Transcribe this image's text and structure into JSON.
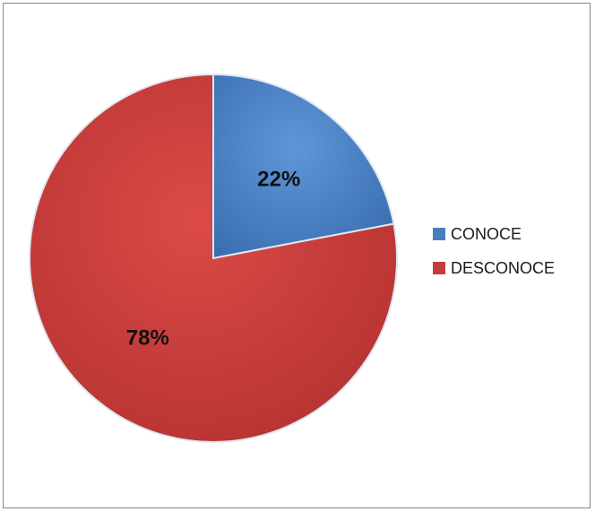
{
  "chart_data": {
    "type": "pie",
    "categories": [
      "CONOCE",
      "DESCONOCE"
    ],
    "values": [
      22,
      78
    ],
    "data_labels": [
      "22%",
      "78%"
    ],
    "colors": [
      "#4a7ebb",
      "#c63b3b"
    ],
    "legend_position": "right",
    "grid": false
  }
}
